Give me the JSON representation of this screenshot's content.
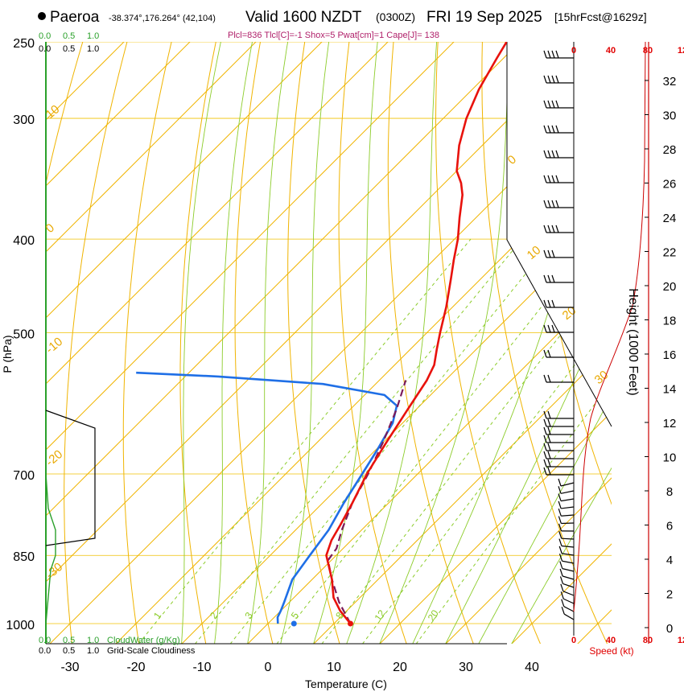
{
  "header": {
    "station": "Paeroa",
    "coords": "-38.374°,176.264° (42,104)",
    "valid": "Valid 1600 NZDT",
    "utc": "(0300Z)",
    "date": "FRI 19 Sep 2025",
    "run": "[15hrFcst@1629z]",
    "indices": "Plcl=836 Tlcl[C]=-1 Shox=5 Pwat[cm]=1 Cape[J]= 138"
  },
  "colors": {
    "temp": "#e8120c",
    "dew": "#1f6fe6",
    "parcel": "#7a1a5a",
    "isotherm": "#f0b400",
    "dry_adiabat": "#f0b400",
    "moist_adiabat": "#8ccc2a",
    "mixing_ratio": "#8ccc2a",
    "cloudwater": "#2aa02a",
    "height": "#cc0000"
  },
  "chart_data": {
    "type": "line",
    "xlabel": "Temperature (C)",
    "ylabel": "P (hPa)",
    "right_label": "Height (1000 Feet)",
    "x_ticks": [
      "-30",
      "-20",
      "-10",
      "0",
      "10",
      "20",
      "30",
      "40"
    ],
    "y_ticks": [
      "250",
      "300",
      "400",
      "500",
      "700",
      "850",
      "1000"
    ],
    "y_tick_values": [
      250,
      300,
      400,
      500,
      700,
      850,
      1000
    ],
    "xlim": [
      -35,
      36
    ],
    "ylim": [
      1040,
      250
    ],
    "height_ticks": [
      "0",
      "2",
      "4",
      "6",
      "8",
      "10",
      "12",
      "14",
      "16",
      "18",
      "20",
      "22",
      "24",
      "26",
      "28",
      "30",
      "32"
    ],
    "height_tick_values": [
      0,
      2,
      4,
      6,
      8,
      10,
      12,
      14,
      16,
      18,
      20,
      22,
      24,
      26,
      28,
      30,
      32
    ],
    "isotherm_labels": [
      "0",
      "10",
      "20",
      "30",
      "-10",
      "-20",
      "-30",
      "10",
      "0"
    ],
    "isotherm_label_values": [
      0,
      10,
      20,
      30,
      -10,
      -20,
      -30,
      10,
      0
    ],
    "mixing_ratio_labels": [
      "1",
      "2",
      "3",
      "5",
      "8",
      "12",
      "20"
    ],
    "mixing_ratio_values": [
      1,
      2,
      3,
      5,
      8,
      12,
      20
    ],
    "speed_label": "Speed (kt)",
    "speed_ticks_top": [
      "0",
      "40",
      "80",
      "12"
    ],
    "speed_ticks_bottom": [
      "0",
      "40",
      "80",
      "12"
    ],
    "cloud_ticks": [
      "0.0",
      "0.5",
      "1.0"
    ],
    "cloudwater_label": "CloudWater (g/Kg)",
    "cloudiness_label": "Grid-Scale Cloudiness",
    "series": [
      {
        "name": "temperature",
        "points": [
          [
            1000,
            12.5
          ],
          [
            970,
            9
          ],
          [
            940,
            6
          ],
          [
            900,
            3
          ],
          [
            850,
            -1.5
          ],
          [
            820,
            -3
          ],
          [
            790,
            -4
          ],
          [
            750,
            -5.5
          ],
          [
            720,
            -6.8
          ],
          [
            700,
            -7.7
          ],
          [
            650,
            -9.5
          ],
          [
            600,
            -11.3
          ],
          [
            560,
            -12.8
          ],
          [
            540,
            -14
          ],
          [
            520,
            -16
          ],
          [
            500,
            -18
          ],
          [
            470,
            -21
          ],
          [
            440,
            -24.5
          ],
          [
            420,
            -27
          ],
          [
            400,
            -29.5
          ],
          [
            380,
            -32.5
          ],
          [
            360,
            -35.5
          ],
          [
            350,
            -37.5
          ],
          [
            340,
            -40
          ],
          [
            320,
            -43.5
          ],
          [
            300,
            -46.5
          ],
          [
            280,
            -49
          ],
          [
            260,
            -51
          ],
          [
            250,
            -52
          ]
        ]
      },
      {
        "name": "dewpoint",
        "points": [
          [
            1000,
            1.5
          ],
          [
            985,
            0.5
          ],
          [
            970,
            0
          ],
          [
            950,
            -0.8
          ],
          [
            900,
            -3
          ],
          [
            850,
            -4
          ],
          [
            800,
            -5
          ],
          [
            750,
            -6.8
          ],
          [
            700,
            -8.4
          ],
          [
            660,
            -9.8
          ],
          [
            620,
            -11.5
          ],
          [
            595,
            -13.5
          ],
          [
            580,
            -17
          ],
          [
            565,
            -28
          ],
          [
            555,
            -45
          ],
          [
            550,
            -58
          ]
        ]
      },
      {
        "name": "parcel",
        "points": [
          [
            1000,
            12.5
          ],
          [
            950,
            7.5
          ],
          [
            900,
            3
          ],
          [
            860,
            -0.5
          ],
          [
            836,
            -1
          ],
          [
            800,
            -3
          ],
          [
            750,
            -5.5
          ],
          [
            700,
            -7.5
          ],
          [
            650,
            -10
          ],
          [
            600,
            -13
          ],
          [
            560,
            -16
          ]
        ]
      }
    ],
    "cloudwater": [
      {
        "p": 880,
        "v": 0.1
      },
      {
        "p": 850,
        "v": 0.2
      },
      {
        "p": 800,
        "v": 0.2
      },
      {
        "p": 760,
        "v": 0.05
      },
      {
        "p": 700,
        "v": 0.0
      }
    ]
  }
}
